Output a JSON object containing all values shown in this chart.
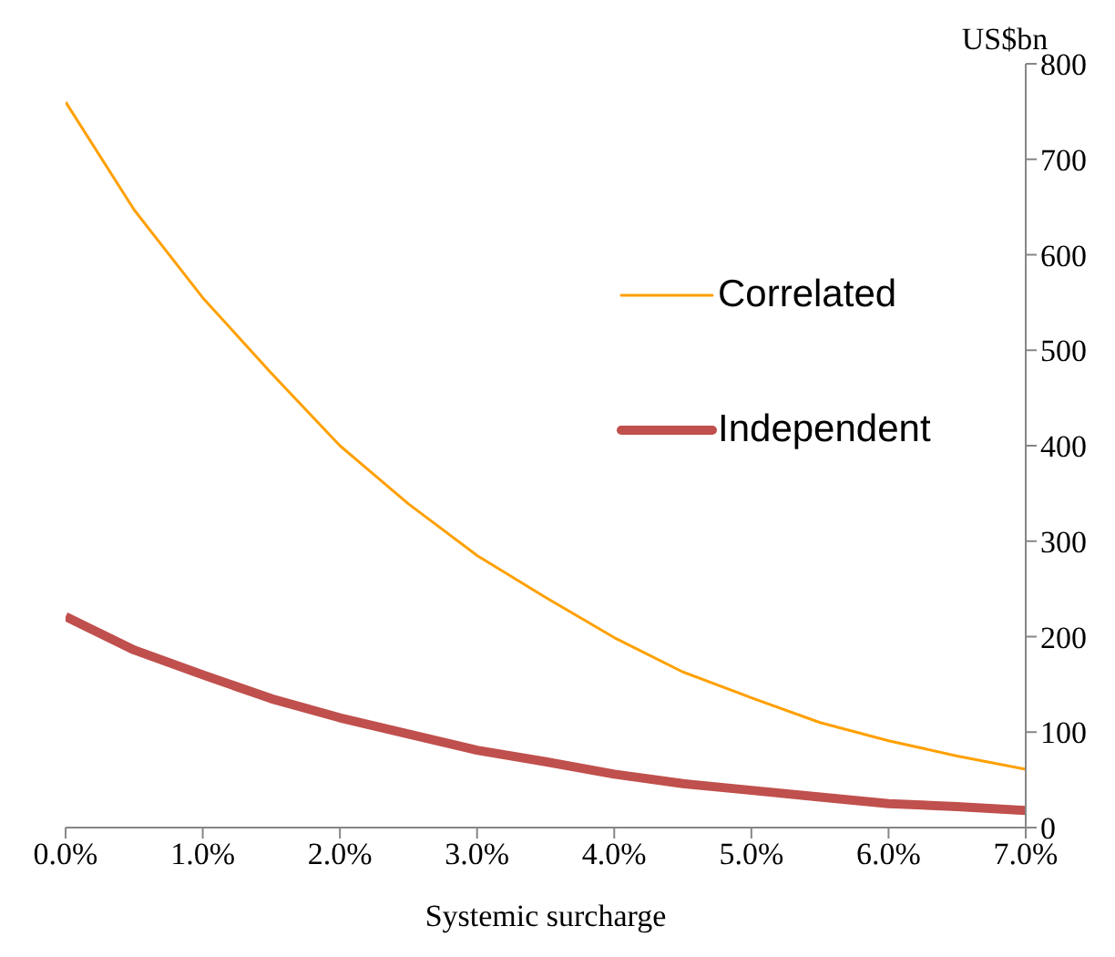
{
  "chart_data": {
    "type": "line",
    "xlabel": "Systemic surcharge",
    "ylabel": "US$bn",
    "x": [
      0,
      0.5,
      1,
      1.5,
      2,
      2.5,
      3,
      3.5,
      4,
      4.5,
      5,
      5.5,
      6,
      6.5,
      7
    ],
    "series": [
      {
        "name": "Correlated",
        "color": "#ffa000",
        "values": [
          760,
          647,
          555,
          476,
          400,
          339,
          285,
          241,
          199,
          163,
          136,
          110,
          91,
          75,
          61
        ]
      },
      {
        "name": "Independent",
        "color": "#c0504d",
        "values": [
          221,
          186,
          160,
          135,
          115,
          98,
          81,
          69,
          56,
          46,
          39,
          32,
          25,
          22,
          18
        ]
      }
    ],
    "xlim": [
      0,
      7
    ],
    "xticks": [
      {
        "value": 0,
        "label": "0.0%"
      },
      {
        "value": 1,
        "label": "1.0%"
      },
      {
        "value": 2,
        "label": "2.0%"
      },
      {
        "value": 3,
        "label": "3.0%"
      },
      {
        "value": 4,
        "label": "4.0%"
      },
      {
        "value": 5,
        "label": "5.0%"
      },
      {
        "value": 6,
        "label": "6.0%"
      },
      {
        "value": 7,
        "label": "7.0%"
      }
    ],
    "ylim": [
      0,
      800
    ],
    "yticks": [
      0,
      100,
      200,
      300,
      400,
      500,
      600,
      700,
      800
    ],
    "grid": false,
    "legend": "top right",
    "marker": "none",
    "line_style": "solid"
  }
}
